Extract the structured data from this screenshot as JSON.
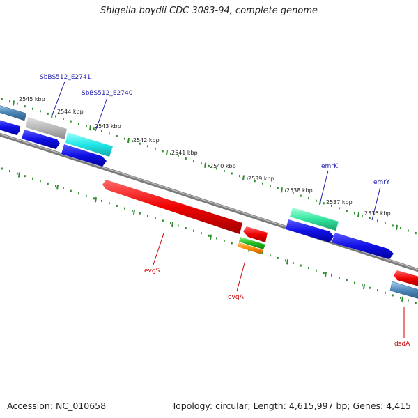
{
  "title": "Shigella boydii CDC 3083-94, complete genome",
  "footer": {
    "accession": "Accession: NC_010658",
    "summary": "Topology: circular; Length: 4,615,997 bp; Genes: 4,415"
  },
  "colors": {
    "backbone": "#8c8c8c",
    "tick_dots": "#2e8b2e",
    "kbp_label": "#222222",
    "forward_label": "#1a1aaa",
    "reverse_label": "#cc0000",
    "blue": "#1010e6",
    "red": "#ee0000",
    "gray": "#b8b8b8",
    "cyan": "#22e6e6",
    "aquamarine": "#33e6a0",
    "steelblue": "#4a86b8",
    "green": "#22bb22",
    "orange": "#ff8c00"
  },
  "kbp_labels": [
    "2545 kbp",
    "2544 kbp",
    "2543 kbp",
    "2542 kbp",
    "2541 kbp",
    "2540 kbp",
    "2539 kbp",
    "2538 kbp",
    "2537 kbp",
    "2536 kbp"
  ],
  "gene_labels": {
    "forward": [
      "SbBS512_E2741",
      "SbBS512_E2740",
      "emrK",
      "emrY"
    ],
    "reverse": [
      "evgS",
      "evgA",
      "dsdA"
    ]
  }
}
